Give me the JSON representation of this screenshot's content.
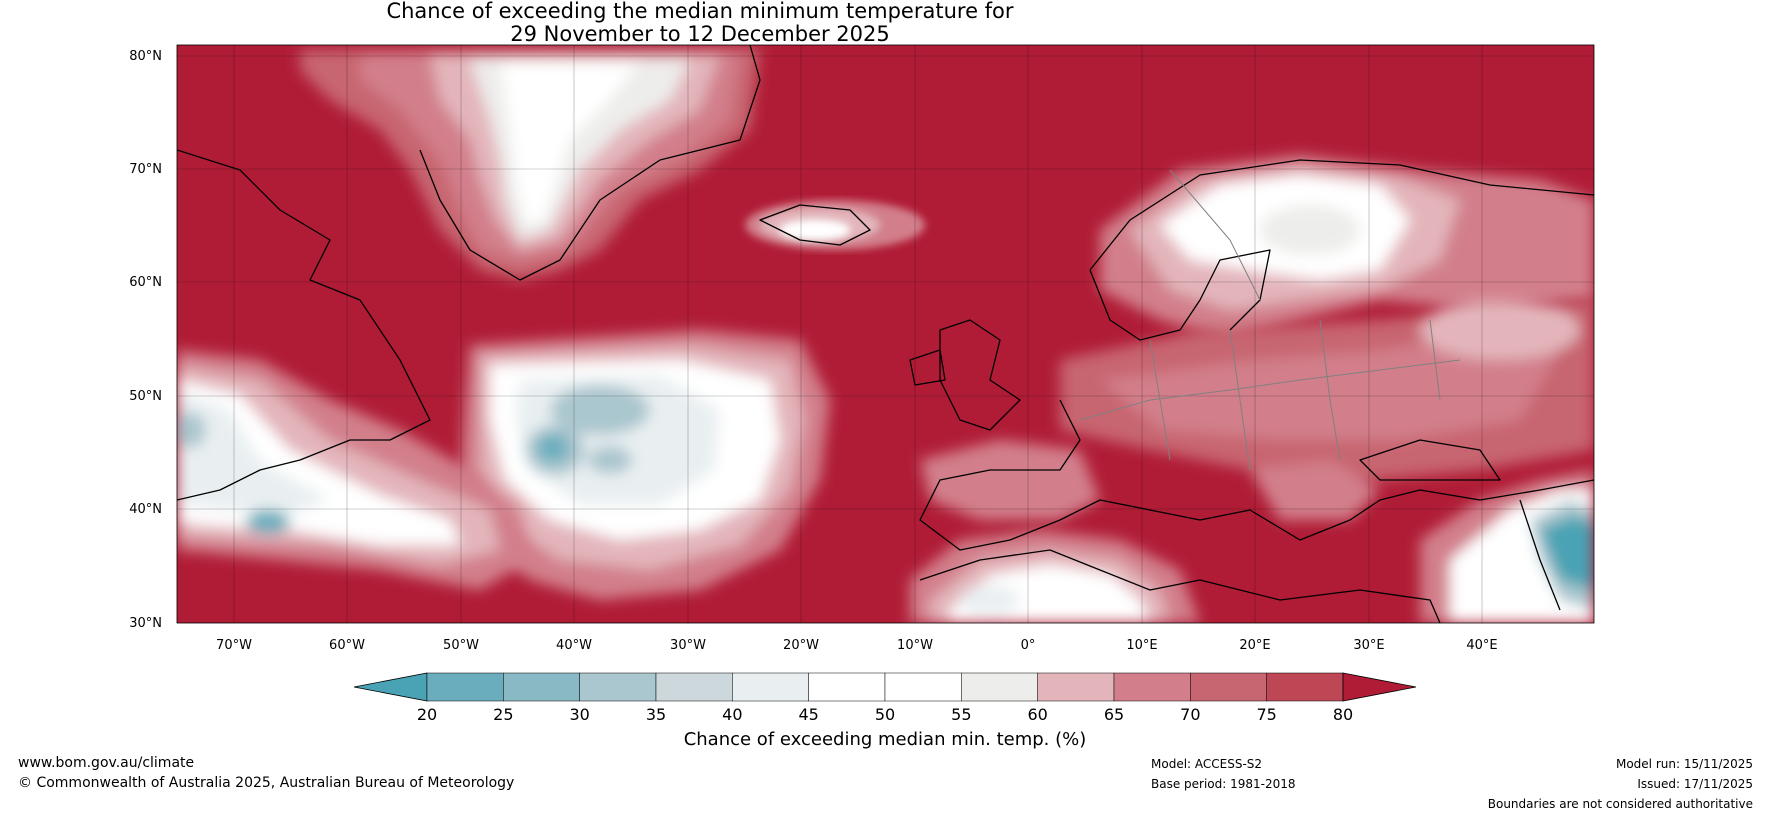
{
  "title": {
    "line1": "Chance of exceeding the median minimum temperature for",
    "line2": "29 November to 12 December 2025"
  },
  "axes": {
    "lat_labels": [
      "80°N",
      "70°N",
      "60°N",
      "50°N",
      "40°N",
      "30°N"
    ],
    "lon_labels": [
      "70°W",
      "60°W",
      "50°W",
      "40°W",
      "30°W",
      "20°W",
      "10°W",
      "0°",
      "10°E",
      "20°E",
      "30°E",
      "40°E"
    ]
  },
  "colorbar": {
    "ticks": [
      "20",
      "25",
      "30",
      "35",
      "40",
      "45",
      "50",
      "55",
      "60",
      "65",
      "70",
      "75",
      "80"
    ],
    "colors": [
      "#4aa3b4",
      "#6aaebe",
      "#8ab9c6",
      "#aac6ce",
      "#cdd8dc",
      "#e9eff1",
      "#ffffff",
      "#ffffff",
      "#ededeb",
      "#e3b5bb",
      "#d27f8b",
      "#c76570",
      "#bd4755",
      "#b01c36"
    ],
    "title": "Chance of exceeding median min. temp. (%)"
  },
  "footer": {
    "website": "www.bom.gov.au/climate",
    "copyright": "© Commonwealth of Australia 2025, Australian Bureau of Meteorology",
    "model": "Model: ACCESS-S2",
    "base_period": "Base period: 1981-2018",
    "model_run": "Model run: 15/11/2025",
    "issued": "Issued: 17/11/2025",
    "disclaimer": "Boundaries are not considered authoritative"
  },
  "map_colors": {
    "high": "#b01c36",
    "mid_high": "#c76570",
    "mid": "#d27f8b",
    "light_pink": "#e3b5bb",
    "neutral": "#ededeb",
    "white": "#ffffff",
    "pale_blue": "#e9eff1",
    "light_blue": "#aac6ce",
    "blue": "#6aaebe",
    "teal": "#4aa3b4"
  }
}
